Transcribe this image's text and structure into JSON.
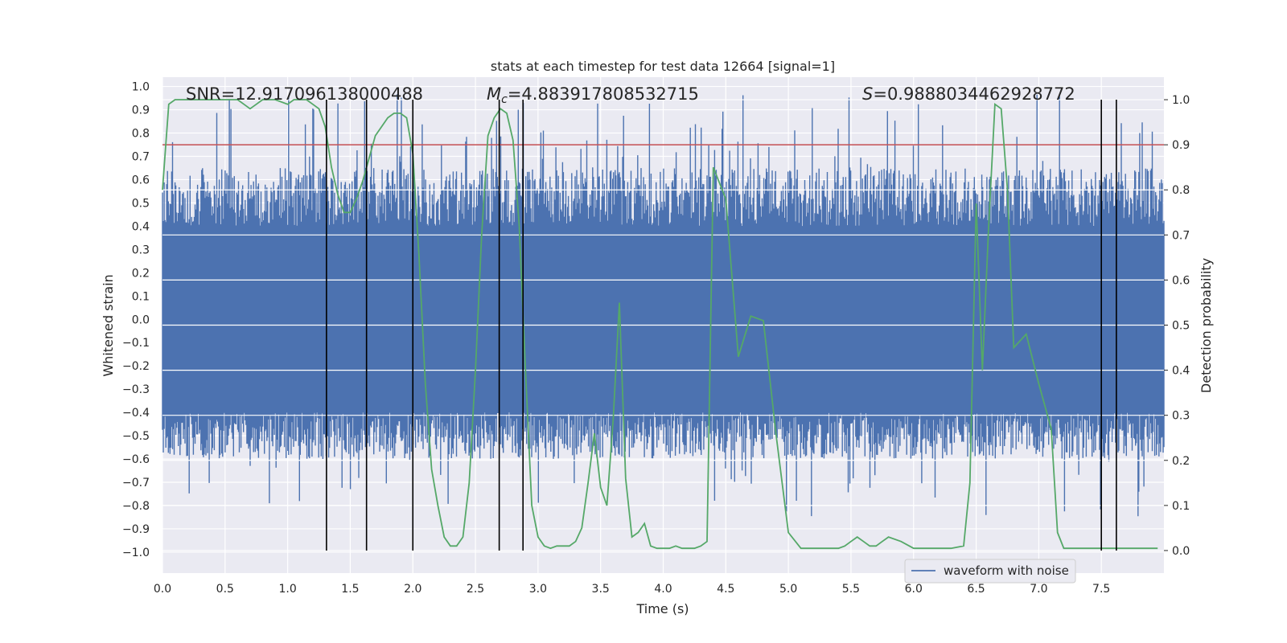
{
  "chart_data": {
    "type": "line",
    "title": "stats at each timestep for test data 12664 [signal=1]",
    "xlabel": "Time (s)",
    "ylabel_left": "Whitened strain",
    "ylabel_right": "Detection probability",
    "xlim": [
      0.0,
      8.0
    ],
    "ylim_left": [
      -1.09,
      1.04
    ],
    "ylim_right": [
      -0.05,
      1.05
    ],
    "x_ticks": [
      "0.0",
      "0.5",
      "1.0",
      "1.5",
      "2.0",
      "2.5",
      "3.0",
      "3.5",
      "4.0",
      "4.5",
      "5.0",
      "5.5",
      "6.0",
      "6.5",
      "7.0",
      "7.5"
    ],
    "x_tick_values": [
      0,
      0.5,
      1,
      1.5,
      2,
      2.5,
      3,
      3.5,
      4,
      4.5,
      5,
      5.5,
      6,
      6.5,
      7,
      7.5
    ],
    "y_ticks_left": [
      "1.0",
      "0.9",
      "0.8",
      "0.7",
      "0.6",
      "0.5",
      "0.4",
      "0.3",
      "0.2",
      "0.1",
      "0.0",
      "−0.1",
      "−0.2",
      "−0.3",
      "−0.4",
      "−0.5",
      "−0.6",
      "−0.7",
      "−0.8",
      "−0.9",
      "−1.0"
    ],
    "y_tick_values_left": [
      1.0,
      0.9,
      0.8,
      0.7,
      0.6,
      0.5,
      0.4,
      0.3,
      0.2,
      0.1,
      0.0,
      -0.1,
      -0.2,
      -0.3,
      -0.4,
      -0.5,
      -0.6,
      -0.7,
      -0.8,
      -0.9,
      -1.0
    ],
    "y_ticks_right": [
      "1.0",
      "0.9",
      "0.8",
      "0.7",
      "0.6",
      "0.5",
      "0.4",
      "0.3",
      "0.2",
      "0.1",
      "0.0"
    ],
    "y_tick_values_right": [
      1.0,
      0.9,
      0.8,
      0.7,
      0.6,
      0.5,
      0.4,
      0.3,
      0.2,
      0.1,
      0.0
    ],
    "annotations": [
      {
        "text": "SNR=12.917096138000488",
        "x": 0.2
      },
      {
        "text_main": "M",
        "text_sub": "c",
        "text_rest": "=4.883917808532715",
        "x": 2.6
      },
      {
        "text_main": "S",
        "text_rest": "=0.9888034462928772",
        "x": 5.6
      }
    ],
    "threshold_probability": 0.9,
    "vertical_lines_x": [
      1.31,
      1.63,
      2.0,
      2.69,
      2.88,
      7.5,
      7.62
    ],
    "legend": {
      "label": "waveform with noise",
      "placement": "lower-right"
    },
    "series": [
      {
        "name": "waveform with noise",
        "axis": "left",
        "color": "#4c72b0",
        "sample_rate": 256,
        "envelope_core": 0.4,
        "spike_max": 0.97
      },
      {
        "name": "detection probability",
        "axis": "right",
        "color": "#55a868",
        "x": [
          0.0,
          0.05,
          0.1,
          0.2,
          0.3,
          0.4,
          0.5,
          0.6,
          0.65,
          0.7,
          0.75,
          0.8,
          0.9,
          1.0,
          1.05,
          1.1,
          1.15,
          1.2,
          1.25,
          1.3,
          1.35,
          1.4,
          1.45,
          1.5,
          1.55,
          1.6,
          1.65,
          1.7,
          1.8,
          1.85,
          1.9,
          1.95,
          2.0,
          2.05,
          2.1,
          2.15,
          2.2,
          2.25,
          2.3,
          2.35,
          2.4,
          2.45,
          2.5,
          2.55,
          2.6,
          2.65,
          2.7,
          2.75,
          2.8,
          2.85,
          2.9,
          2.95,
          3.0,
          3.05,
          3.1,
          3.15,
          3.2,
          3.25,
          3.3,
          3.35,
          3.4,
          3.45,
          3.5,
          3.55,
          3.6,
          3.65,
          3.7,
          3.75,
          3.8,
          3.85,
          3.9,
          3.95,
          4.0,
          4.05,
          4.1,
          4.15,
          4.2,
          4.25,
          4.3,
          4.35,
          4.4,
          4.5,
          4.6,
          4.7,
          4.8,
          4.9,
          5.0,
          5.1,
          5.15,
          5.2,
          5.25,
          5.3,
          5.35,
          5.4,
          5.45,
          5.5,
          5.55,
          5.6,
          5.65,
          5.7,
          5.75,
          5.8,
          5.9,
          6.0,
          6.1,
          6.2,
          6.3,
          6.4,
          6.45,
          6.5,
          6.55,
          6.6,
          6.65,
          6.7,
          6.75,
          6.8,
          6.9,
          7.0,
          7.1,
          7.15,
          7.2,
          7.25,
          7.3,
          7.35,
          7.4,
          7.45,
          7.5,
          7.55,
          7.6,
          7.65,
          7.7,
          7.75,
          7.8,
          7.85,
          7.9,
          7.95
        ],
        "values": [
          0.8,
          0.99,
          1.0,
          1.0,
          1.0,
          1.0,
          1.0,
          1.0,
          0.99,
          0.98,
          0.99,
          1.0,
          1.0,
          0.99,
          1.0,
          1.0,
          1.0,
          0.99,
          0.98,
          0.94,
          0.85,
          0.79,
          0.75,
          0.75,
          0.78,
          0.82,
          0.87,
          0.92,
          0.96,
          0.97,
          0.97,
          0.96,
          0.88,
          0.65,
          0.37,
          0.18,
          0.1,
          0.03,
          0.01,
          0.01,
          0.03,
          0.15,
          0.4,
          0.7,
          0.92,
          0.96,
          0.98,
          0.97,
          0.91,
          0.72,
          0.4,
          0.1,
          0.03,
          0.01,
          0.005,
          0.01,
          0.01,
          0.01,
          0.02,
          0.05,
          0.15,
          0.26,
          0.14,
          0.1,
          0.29,
          0.55,
          0.16,
          0.03,
          0.04,
          0.06,
          0.01,
          0.005,
          0.005,
          0.005,
          0.01,
          0.005,
          0.005,
          0.005,
          0.01,
          0.02,
          0.85,
          0.78,
          0.43,
          0.52,
          0.51,
          0.26,
          0.04,
          0.005,
          0.005,
          0.005,
          0.005,
          0.005,
          0.005,
          0.005,
          0.01,
          0.02,
          0.03,
          0.02,
          0.01,
          0.01,
          0.02,
          0.03,
          0.02,
          0.005,
          0.005,
          0.005,
          0.005,
          0.01,
          0.15,
          0.77,
          0.4,
          0.72,
          0.99,
          0.98,
          0.8,
          0.45,
          0.48,
          0.37,
          0.27,
          0.04,
          0.005,
          0.005,
          0.005,
          0.005,
          0.005,
          0.005,
          0.005,
          0.005,
          0.005,
          0.005,
          0.005,
          0.005,
          0.005,
          0.005,
          0.005,
          0.005
        ]
      }
    ]
  }
}
